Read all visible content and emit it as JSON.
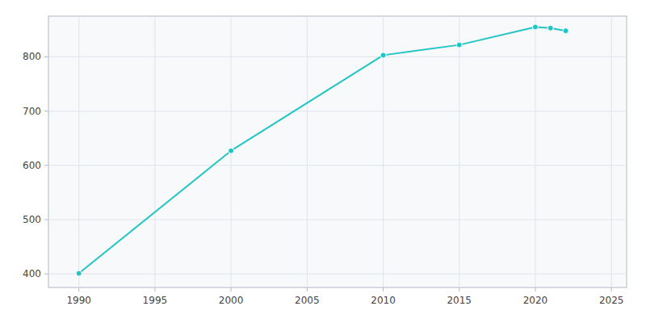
{
  "chart_data": {
    "type": "line",
    "x": [
      1990,
      2000,
      2010,
      2015,
      2020,
      2021,
      2022
    ],
    "values": [
      401,
      627,
      803,
      822,
      855,
      853,
      848
    ],
    "color": "#22c4c4",
    "marker": "circle",
    "xlim": [
      1988,
      2026
    ],
    "xticks": [
      1990,
      1995,
      2000,
      2005,
      2010,
      2015,
      2020,
      2025
    ],
    "ylim": [
      375,
      875
    ],
    "yticks": [
      400,
      500,
      600,
      700,
      800
    ],
    "grid": true
  }
}
